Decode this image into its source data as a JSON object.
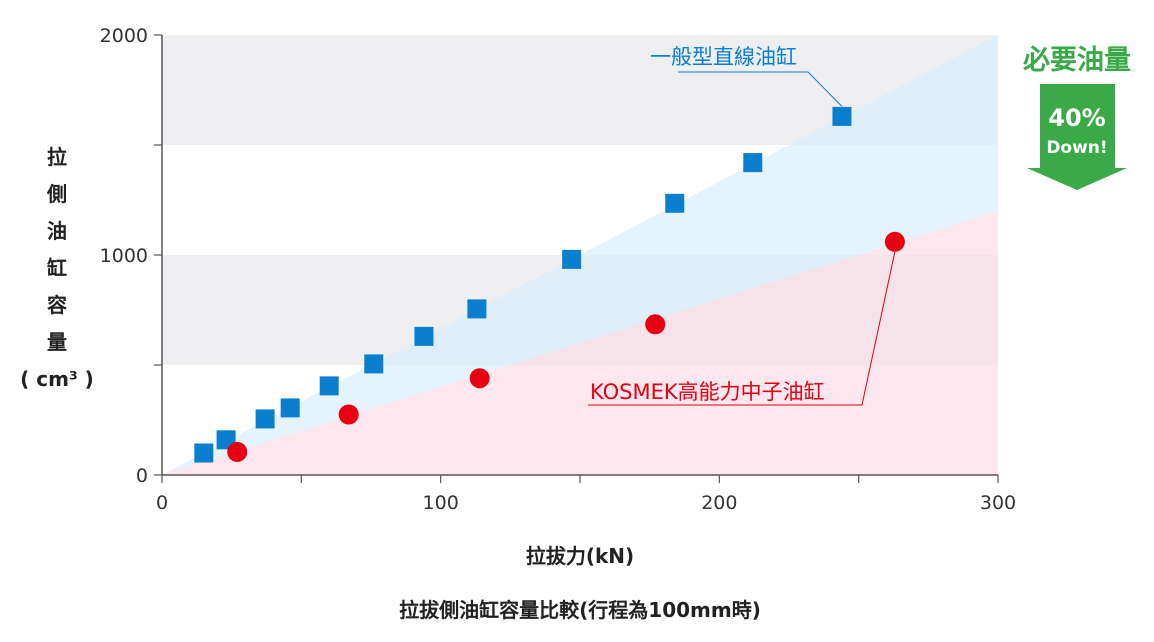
{
  "chart_data": {
    "type": "scatter",
    "title": "拉拔側油缸容量比較(行程為100mm時)",
    "xlabel": "拉拔力(kN)",
    "ylabel_chars": [
      "拉",
      "側",
      "油",
      "缸",
      "容",
      "量"
    ],
    "ylabel_unit": "( cm³ )",
    "xlim": [
      0,
      300
    ],
    "ylim": [
      0,
      2000
    ],
    "x_ticks": [
      "0",
      "100",
      "200",
      "300"
    ],
    "y_ticks": [
      "0",
      "1000",
      "2000"
    ],
    "series": [
      {
        "name": "一般型直線油缸",
        "marker": "square",
        "color": "#0a7fd0",
        "x": [
          15,
          23,
          37,
          46,
          60,
          76,
          94,
          113,
          147,
          184,
          212,
          244
        ],
        "y": [
          100,
          160,
          255,
          305,
          405,
          505,
          630,
          755,
          980,
          1235,
          1420,
          1630
        ]
      },
      {
        "name": "KOSMEK高能力中子油缸",
        "marker": "circle",
        "color": "#e60012",
        "x": [
          27,
          67,
          114,
          177,
          263
        ],
        "y": [
          105,
          275,
          440,
          685,
          1060
        ]
      }
    ],
    "badge": {
      "title": "必要油量",
      "percent": "40%",
      "label": "Down!",
      "color": "#3aaa48"
    }
  }
}
